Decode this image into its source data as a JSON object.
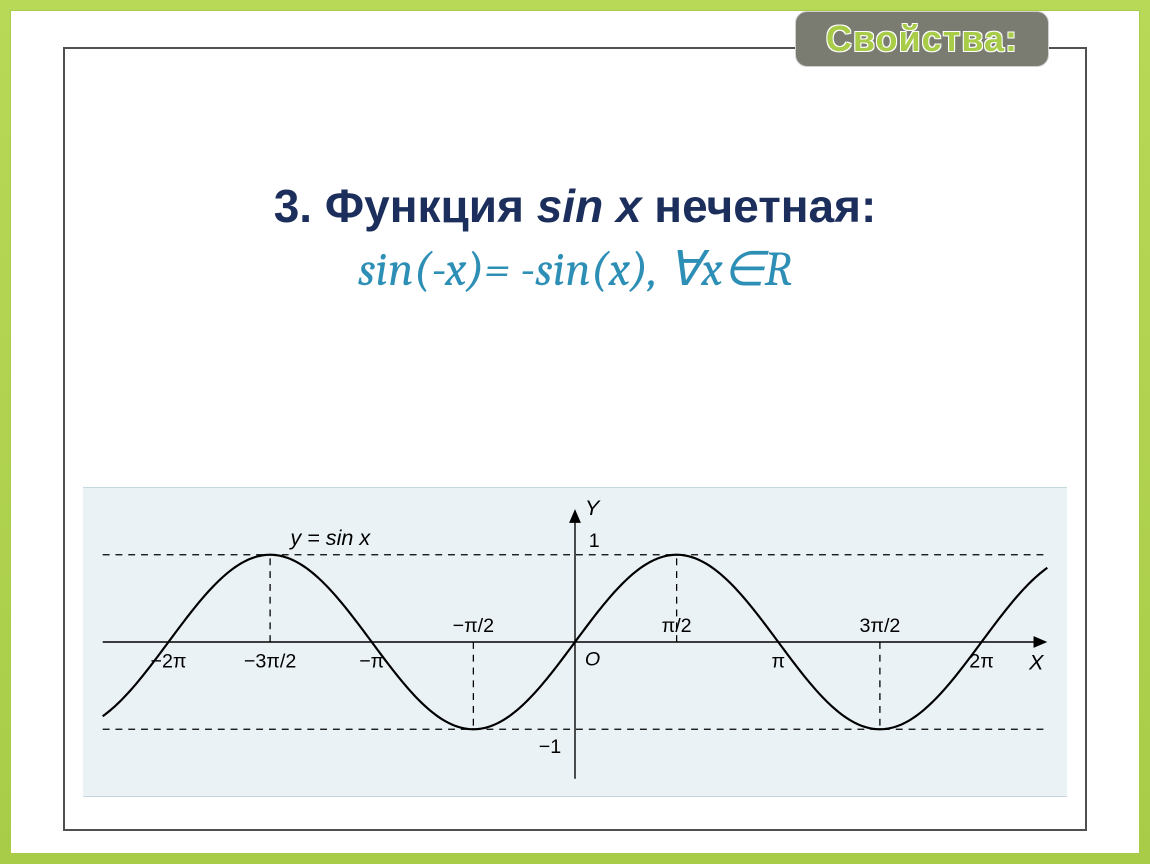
{
  "badge": {
    "label": "Свойства:"
  },
  "title": {
    "prefix": "3. Функция ",
    "italic": "sin x",
    "suffix": " нечетная:"
  },
  "formula": "sin(-x)= -sin(x), ∀x∈R",
  "chart": {
    "type": "line",
    "function_label": "y = sin x",
    "x_axis_label": "X",
    "y_axis_label": "Y",
    "origin_label": "O",
    "background_color": "#eaf2f6",
    "curve_color": "#000000",
    "curve_width": 2.2,
    "axis_color": "#000000",
    "axis_width": 1.4,
    "dash_color": "#000000",
    "dash_pattern": "7,6",
    "label_fontsize_axis": 22,
    "label_fontsize_tick": 20,
    "label_fontsize_func": 22,
    "xlim": [
      -7.3,
      7.3
    ],
    "ylim": [
      -1.5,
      1.5
    ],
    "x_ticks_below": [
      {
        "v": -6.2832,
        "label": "−2π"
      },
      {
        "v": -4.7124,
        "label": "−3π/2"
      },
      {
        "v": -3.1416,
        "label": "−π"
      },
      {
        "v": 3.1416,
        "label": "π"
      },
      {
        "v": 6.2832,
        "label": "2π"
      }
    ],
    "x_ticks_above": [
      {
        "v": -1.5708,
        "label": "−π/2"
      },
      {
        "v": 1.5708,
        "label": "π/2"
      },
      {
        "v": 4.7124,
        "label": "3π/2"
      }
    ],
    "y_ticks": [
      {
        "v": 1,
        "label": "1"
      },
      {
        "v": -1,
        "label": "−1"
      }
    ],
    "dash_verticals_up": [
      -4.7124,
      1.5708
    ],
    "dash_verticals_down": [
      -1.5708,
      4.7124
    ],
    "dash_horizontals": [
      1,
      -1
    ]
  },
  "colors": {
    "slide_bg_top": "#b8d858",
    "slide_bg_bottom": "#a8cc48",
    "frame_border": "#505050",
    "title_color": "#1c2f5c",
    "formula_color": "#2e8fb6",
    "badge_bg": "#7a7c72",
    "badge_text": "#a8cc48"
  }
}
